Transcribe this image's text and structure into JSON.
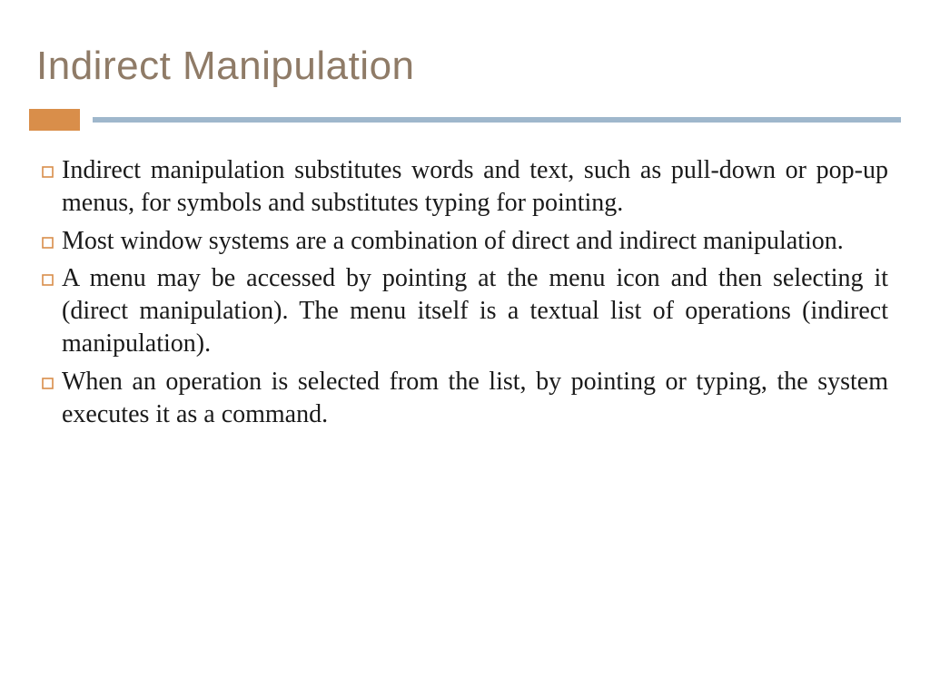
{
  "colors": {
    "title": "#8f7b67",
    "accent_block": "#d98e4a",
    "rule": "#9fb7cc",
    "bullet_stroke": "#d98e4a",
    "body_text": "#1a1a1a",
    "background": "#ffffff"
  },
  "typography": {
    "title_family": "Segoe UI Light, Segoe UI, Arial, sans-serif",
    "title_size_pt": 33,
    "title_weight": 300,
    "body_family": "Times New Roman, Times, serif",
    "body_size_pt": 21,
    "body_line_height": 1.28,
    "body_align": "justify"
  },
  "layout": {
    "slide_width": 1024,
    "slide_height": 768,
    "accent_block_w": 56,
    "accent_block_h": 24,
    "rule_height": 6,
    "bullet_size": 13,
    "bullet_stroke_width": 1.6
  },
  "title": "Indirect Manipulation",
  "bullets": [
    "Indirect manipulation substitutes words and text, such as pull-down or pop-up menus, for symbols and substitutes typing for pointing.",
    "Most window systems are a combination of direct and indirect manipulation.",
    "A menu may be accessed by pointing at the menu icon and then selecting it (direct manipulation). The menu itself is a textual list of operations (indirect manipulation).",
    "When an operation is selected from the list, by pointing or typing, the system executes it as a command."
  ]
}
